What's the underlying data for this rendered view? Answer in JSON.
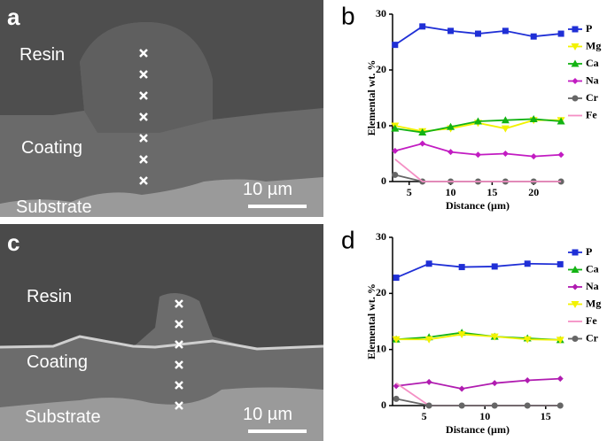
{
  "images": [
    {
      "panel_label": "a",
      "labels": [
        "Resin",
        "Coating",
        "Substrate"
      ],
      "scale_bar": "10 µm"
    },
    {
      "panel_label": "c",
      "labels": [
        "Resin",
        "Coating",
        "Substrate"
      ],
      "scale_bar": "10 µm"
    }
  ],
  "chart_data": [
    {
      "type": "line",
      "panel_label": "b",
      "x_label": "Distance (µm)",
      "y_label": "Elemental wt. %",
      "x": [
        3.3,
        6.6,
        10,
        13.3,
        16.6,
        20,
        23.3
      ],
      "xlim": [
        3,
        23.5
      ],
      "xticks": [
        5,
        10,
        15,
        20
      ],
      "ylim": [
        0,
        30
      ],
      "yticks": [
        0,
        10,
        20,
        30
      ],
      "legend": "right",
      "series": [
        {
          "name": "P",
          "color": "#1f2fd6",
          "marker": "square",
          "values": [
            24.5,
            27.8,
            27,
            26.5,
            27,
            26,
            26.5
          ]
        },
        {
          "name": "Mg",
          "color": "#f2f200",
          "marker": "triangle-down",
          "values": [
            10,
            9,
            9.5,
            10.5,
            9.5,
            11,
            11
          ]
        },
        {
          "name": "Ca",
          "color": "#13b313",
          "marker": "triangle-up",
          "values": [
            9.5,
            8.8,
            9.8,
            10.8,
            11,
            11.2,
            10.8
          ]
        },
        {
          "name": "Na",
          "color": "#c21cc2",
          "marker": "diamond",
          "values": [
            5.5,
            6.8,
            5.3,
            4.8,
            5,
            4.5,
            4.8
          ]
        },
        {
          "name": "Cr",
          "color": "#666666",
          "marker": "circle",
          "values": [
            1.2,
            0,
            0,
            0,
            0,
            0,
            0
          ]
        },
        {
          "name": "Fe",
          "color": "#f48fc4",
          "marker": "none",
          "values": [
            4,
            0,
            0,
            0,
            0,
            0,
            0
          ]
        }
      ]
    },
    {
      "type": "line",
      "panel_label": "d",
      "x_label": "Distance (µm)",
      "y_label": "Elemental wt. %",
      "x": [
        2.7,
        5.4,
        8.1,
        10.8,
        13.5,
        16.2
      ],
      "xlim": [
        2.4,
        16.4
      ],
      "xticks": [
        5,
        10,
        15
      ],
      "ylim": [
        0,
        30
      ],
      "yticks": [
        0,
        10,
        20,
        30
      ],
      "legend": "right",
      "series": [
        {
          "name": "P",
          "color": "#1f2fd6",
          "marker": "square",
          "values": [
            22.8,
            25.3,
            24.7,
            24.8,
            25.3,
            25.2
          ]
        },
        {
          "name": "Ca",
          "color": "#13b313",
          "marker": "triangle-up",
          "values": [
            11.8,
            12.2,
            13,
            12.3,
            12,
            11.7
          ]
        },
        {
          "name": "Na",
          "color": "#b01cb0",
          "marker": "diamond",
          "values": [
            3.5,
            4.2,
            3,
            4,
            4.5,
            4.8
          ]
        },
        {
          "name": "Mg",
          "color": "#f2f200",
          "marker": "triangle-down",
          "values": [
            11.8,
            11.8,
            12.7,
            12.3,
            11.8,
            11.7
          ]
        },
        {
          "name": "Fe",
          "color": "#f48fc4",
          "marker": "none",
          "values": [
            4,
            0,
            0,
            0,
            0,
            0
          ]
        },
        {
          "name": "Cr",
          "color": "#666666",
          "marker": "circle",
          "values": [
            1.2,
            0,
            0,
            0,
            0,
            0
          ]
        }
      ]
    }
  ]
}
